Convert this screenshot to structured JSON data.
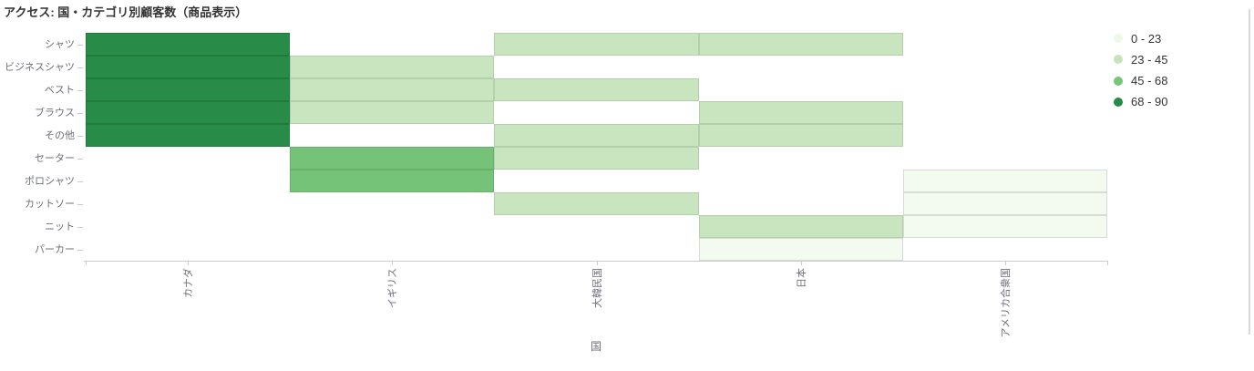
{
  "header": {
    "title": "アクセス: 国・カテゴリ別顧客数（商品表示）"
  },
  "colors": {
    "background": "#ffffff",
    "title_text": "#333333",
    "axis_label": "#6e7079",
    "axis_line": "#cccccc",
    "legend_text": "#333333",
    "panel_right_border": "#d9d9d9"
  },
  "chart_data": {
    "type": "heatmap",
    "title": "アクセス: 国・カテゴリ別顧客数（商品表示）",
    "xlabel": "国",
    "ylabel": "",
    "x_categories": [
      "カナダ",
      "イギリス",
      "大韓民国",
      "日本",
      "アメリカ合衆国"
    ],
    "y_categories": [
      "シャツ",
      "ビジネスシャツ",
      "ベスト",
      "ブラウス",
      "その他",
      "セーター",
      "ポロシャツ",
      "カットソー",
      "ニット",
      "パーカー"
    ],
    "value_range": [
      0,
      90
    ],
    "legend_position": "top-right",
    "grid": false,
    "buckets": [
      {
        "range": "0 - 23",
        "min": 0,
        "max": 23,
        "fill": "#f3faf0",
        "border": "#d7dcd5",
        "legend_color": "#edf8e9"
      },
      {
        "range": "23 - 45",
        "min": 23,
        "max": 45,
        "fill": "#c8e5bf",
        "border": "#b4cfab",
        "legend_color": "#c5e4bc"
      },
      {
        "range": "45 - 68",
        "min": 45,
        "max": 68,
        "fill": "#74c378",
        "border": "#68b06d",
        "legend_color": "#76c578"
      },
      {
        "range": "68 - 90",
        "min": 68,
        "max": 90,
        "fill": "#288b47",
        "border": "#1f7a3c",
        "legend_color": "#238b45"
      }
    ],
    "cells": [
      {
        "x": "カナダ",
        "y": "シャツ",
        "bucket": "68 - 90"
      },
      {
        "x": "カナダ",
        "y": "ビジネスシャツ",
        "bucket": "68 - 90"
      },
      {
        "x": "カナダ",
        "y": "ベスト",
        "bucket": "68 - 90"
      },
      {
        "x": "カナダ",
        "y": "ブラウス",
        "bucket": "68 - 90"
      },
      {
        "x": "カナダ",
        "y": "その他",
        "bucket": "68 - 90"
      },
      {
        "x": "イギリス",
        "y": "ビジネスシャツ",
        "bucket": "23 - 45"
      },
      {
        "x": "イギリス",
        "y": "ベスト",
        "bucket": "23 - 45"
      },
      {
        "x": "イギリス",
        "y": "ブラウス",
        "bucket": "23 - 45"
      },
      {
        "x": "イギリス",
        "y": "セーター",
        "bucket": "45 - 68"
      },
      {
        "x": "イギリス",
        "y": "ポロシャツ",
        "bucket": "45 - 68"
      },
      {
        "x": "大韓民国",
        "y": "シャツ",
        "bucket": "23 - 45"
      },
      {
        "x": "大韓民国",
        "y": "ベスト",
        "bucket": "23 - 45"
      },
      {
        "x": "大韓民国",
        "y": "その他",
        "bucket": "23 - 45"
      },
      {
        "x": "大韓民国",
        "y": "セーター",
        "bucket": "23 - 45"
      },
      {
        "x": "大韓民国",
        "y": "カットソー",
        "bucket": "23 - 45"
      },
      {
        "x": "日本",
        "y": "シャツ",
        "bucket": "23 - 45"
      },
      {
        "x": "日本",
        "y": "ブラウス",
        "bucket": "23 - 45"
      },
      {
        "x": "日本",
        "y": "その他",
        "bucket": "23 - 45"
      },
      {
        "x": "日本",
        "y": "ニット",
        "bucket": "23 - 45"
      },
      {
        "x": "日本",
        "y": "パーカー",
        "bucket": "0 - 23"
      },
      {
        "x": "アメリカ合衆国",
        "y": "ポロシャツ",
        "bucket": "0 - 23"
      },
      {
        "x": "アメリカ合衆国",
        "y": "カットソー",
        "bucket": "0 - 23"
      },
      {
        "x": "アメリカ合衆国",
        "y": "ニット",
        "bucket": "0 - 23"
      }
    ]
  }
}
